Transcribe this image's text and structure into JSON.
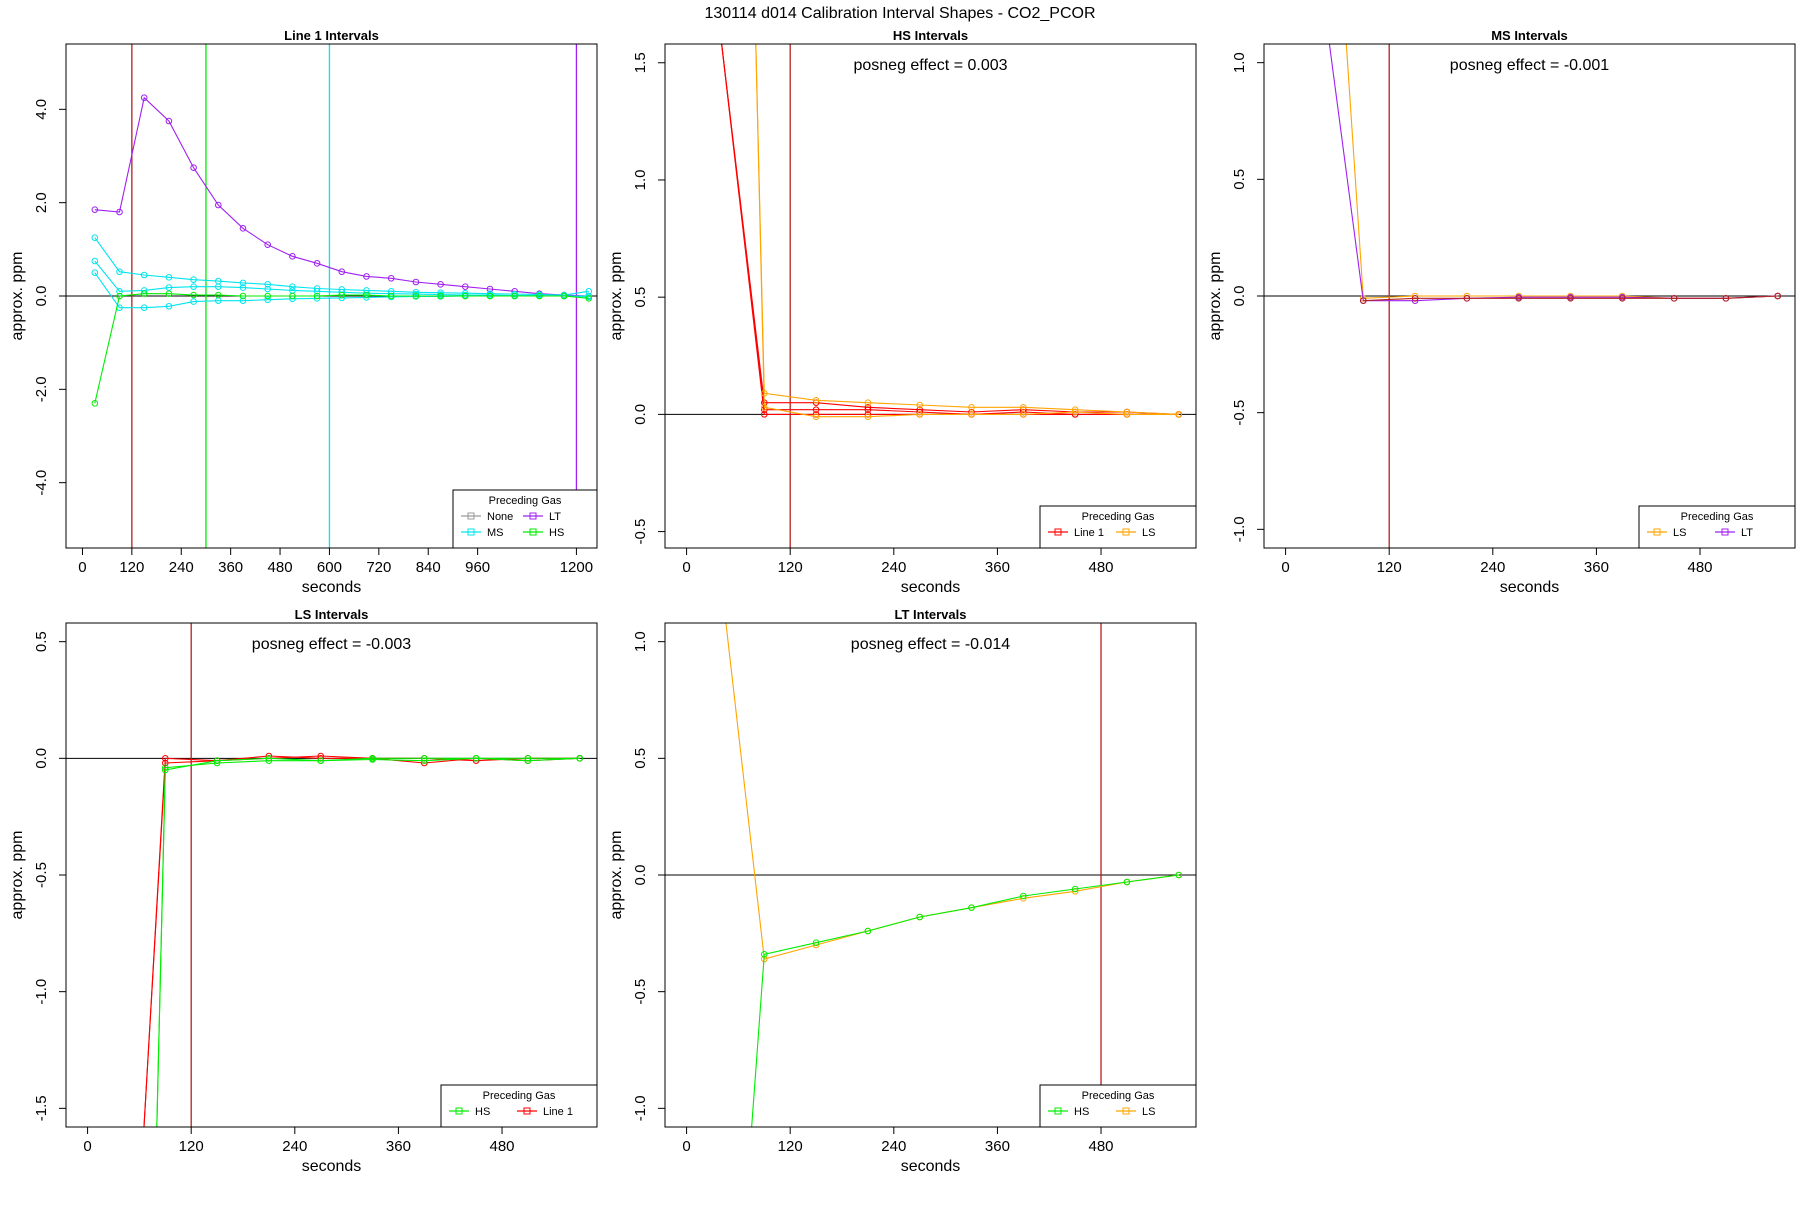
{
  "figure_title": "130114  d014   Calibration Interval Shapes - CO2_PCOR",
  "legend_title": "Preceding Gas",
  "chart_data": [
    {
      "type": "line",
      "title": "Line 1 Intervals",
      "xlabel": "seconds",
      "ylabel": "approx. ppm",
      "xlim": [
        -40,
        1250
      ],
      "ylim": [
        -5.4,
        5.4
      ],
      "xticks": [
        0,
        120,
        240,
        360,
        480,
        600,
        720,
        840,
        960,
        1200
      ],
      "yticks": [
        -4,
        -2,
        0,
        2,
        4
      ],
      "hline": 0,
      "vlines": [
        {
          "x": 120,
          "color": "#b22222"
        },
        {
          "x": 300,
          "color": "#00ee00"
        },
        {
          "x": 600,
          "color": "#00e5ee"
        },
        {
          "x": 1200,
          "color": "#a020f0"
        }
      ],
      "legend": {
        "position": "bottom-right",
        "columns": 2,
        "entries": [
          {
            "label": "None",
            "color": "#9a9a9a"
          },
          {
            "label": "LT",
            "color": "#a020f0"
          },
          {
            "label": "MS",
            "color": "#00e5ee"
          },
          {
            "label": "HS",
            "color": "#00ee00"
          }
        ]
      },
      "series": [
        {
          "color": "#a020f0",
          "x": [
            30,
            90,
            150,
            210,
            270,
            330,
            390,
            450,
            510,
            570,
            630,
            690,
            750,
            810,
            870,
            930,
            990,
            1050,
            1110,
            1170,
            1230
          ],
          "y": [
            1.85,
            1.8,
            4.25,
            3.75,
            2.75,
            1.95,
            1.45,
            1.1,
            0.85,
            0.7,
            0.52,
            0.42,
            0.38,
            0.3,
            0.25,
            0.2,
            0.15,
            0.1,
            0.05,
            0.02,
            0
          ]
        },
        {
          "color": "#00e5ee",
          "x": [
            30,
            90,
            150,
            210,
            270,
            330,
            390,
            450,
            510,
            570,
            630,
            690,
            750,
            810,
            870,
            930,
            990,
            1050,
            1110,
            1170,
            1230
          ],
          "y": [
            1.25,
            0.52,
            0.45,
            0.4,
            0.35,
            0.32,
            0.28,
            0.25,
            0.2,
            0.16,
            0.14,
            0.12,
            0.1,
            0.08,
            0.07,
            0.06,
            0.05,
            0.04,
            0.03,
            0.02,
            0.1
          ]
        },
        {
          "color": "#00e5ee",
          "x": [
            30,
            90,
            150,
            210,
            270,
            330,
            390,
            450,
            510,
            570,
            630,
            690,
            750,
            810,
            870,
            930,
            990,
            1050,
            1110,
            1170,
            1230
          ],
          "y": [
            0.75,
            0.1,
            0.12,
            0.18,
            0.2,
            0.2,
            0.18,
            0.15,
            0.12,
            0.1,
            0.08,
            0.06,
            0.05,
            0.04,
            0.03,
            0.02,
            0.02,
            0.01,
            0.01,
            0,
            0
          ]
        },
        {
          "color": "#00e5ee",
          "x": [
            30,
            90,
            150,
            210,
            270,
            330,
            390,
            450,
            510,
            570,
            630,
            690,
            750,
            810,
            870,
            930,
            990,
            1050,
            1110,
            1170,
            1230
          ],
          "y": [
            0.5,
            -0.25,
            -0.25,
            -0.22,
            -0.12,
            -0.1,
            -0.1,
            -0.08,
            -0.06,
            -0.05,
            -0.04,
            -0.03,
            -0.02,
            -0.01,
            -0.01,
            0,
            0,
            0,
            0,
            0,
            -0.02
          ]
        },
        {
          "color": "#00ee00",
          "x": [
            30,
            90,
            150,
            210,
            270,
            330,
            390,
            450,
            510,
            570,
            630,
            690,
            750,
            810,
            870,
            930,
            990,
            1050,
            1110,
            1170,
            1230
          ],
          "y": [
            -2.3,
            0.0,
            0.05,
            0.05,
            0.02,
            0.02,
            0.0,
            0.0,
            0.0,
            0.0,
            0.02,
            0.02,
            0.0,
            0.0,
            0.0,
            0.0,
            0.0,
            0.0,
            0.0,
            0.0,
            -0.05
          ]
        }
      ]
    },
    {
      "type": "line",
      "title": "HS Intervals",
      "annotation": "posneg effect = 0.003",
      "xlabel": "seconds",
      "ylabel": "approx. ppm",
      "xlim": [
        -25,
        590
      ],
      "ylim": [
        -0.57,
        1.58
      ],
      "xticks": [
        0,
        120,
        240,
        360,
        480
      ],
      "yticks": [
        -0.5,
        0.0,
        0.5,
        1.0,
        1.5
      ],
      "hline": 0,
      "vlines": [
        {
          "x": 120,
          "color": "#b22222"
        }
      ],
      "legend": {
        "position": "bottom-right",
        "columns": 2,
        "entries": [
          {
            "label": "Line 1",
            "color": "#ff0000"
          },
          {
            "label": "LS",
            "color": "#ffa500"
          }
        ]
      },
      "series": [
        {
          "color": "#ff0000",
          "x": [
            40,
            90,
            150,
            210,
            270,
            330,
            390,
            450,
            510,
            570
          ],
          "y": [
            1.6,
            0.05,
            0.05,
            0.03,
            0.02,
            0.01,
            0.02,
            0.01,
            0.01,
            0
          ]
        },
        {
          "color": "#ff0000",
          "x": [
            40,
            90,
            150,
            210,
            270,
            330,
            390,
            450,
            510,
            570
          ],
          "y": [
            1.6,
            0.02,
            0.02,
            0.02,
            0.01,
            0.0,
            0.01,
            0.0,
            0.0,
            0
          ]
        },
        {
          "color": "#ff0000",
          "x": [
            40,
            90,
            150,
            210,
            270,
            330,
            390,
            450,
            510,
            570
          ],
          "y": [
            1.6,
            0.0,
            0.0,
            0.0,
            0.0,
            0.0,
            0.0,
            0.0,
            0.0,
            0
          ]
        },
        {
          "color": "#ffa500",
          "x": [
            80,
            90,
            150,
            210,
            270,
            330,
            390,
            450,
            510,
            570
          ],
          "y": [
            1.6,
            0.09,
            0.06,
            0.05,
            0.04,
            0.03,
            0.03,
            0.02,
            0.01,
            0
          ]
        },
        {
          "color": "#ffa500",
          "x": [
            80,
            90,
            150,
            210,
            270,
            330,
            390,
            450,
            510,
            570
          ],
          "y": [
            1.6,
            0.03,
            -0.01,
            -0.01,
            0.0,
            0.0,
            0.0,
            0.01,
            0.0,
            0
          ]
        }
      ]
    },
    {
      "type": "line",
      "title": "MS Intervals",
      "annotation": "posneg effect = -0.001",
      "xlabel": "seconds",
      "ylabel": "approx. ppm",
      "xlim": [
        -25,
        590
      ],
      "ylim": [
        -1.08,
        1.08
      ],
      "xticks": [
        0,
        120,
        240,
        360,
        480
      ],
      "yticks": [
        -1.0,
        -0.5,
        0.0,
        0.5,
        1.0
      ],
      "hline": 0,
      "vlines": [
        {
          "x": 120,
          "color": "#b22222"
        }
      ],
      "legend": {
        "position": "bottom-right",
        "columns": 2,
        "entries": [
          {
            "label": "LS",
            "color": "#ffa500"
          },
          {
            "label": "LT",
            "color": "#a020f0"
          }
        ]
      },
      "series": [
        {
          "color": "#ffa500",
          "x": [
            70,
            90,
            150,
            210,
            270,
            330,
            390,
            450,
            510,
            570
          ],
          "y": [
            1.1,
            -0.01,
            0.0,
            0.0,
            0.0,
            0.0,
            0.0,
            -0.01,
            -0.01,
            0
          ]
        },
        {
          "color": "#a020f0",
          "x": [
            50,
            90,
            150,
            210,
            270,
            330,
            390,
            450,
            510,
            570
          ],
          "y": [
            1.1,
            -0.02,
            -0.02,
            -0.01,
            -0.005,
            -0.005,
            -0.005,
            -0.01,
            -0.01,
            0
          ]
        },
        {
          "color": "#b22222",
          "x": [
            90,
            150,
            210,
            270,
            330,
            390,
            450,
            510,
            570
          ],
          "y": [
            -0.02,
            -0.01,
            -0.01,
            -0.01,
            -0.01,
            -0.01,
            -0.01,
            -0.01,
            0
          ]
        }
      ]
    },
    {
      "type": "line",
      "title": "LS Intervals",
      "annotation": "posneg effect = -0.003",
      "xlabel": "seconds",
      "ylabel": "approx. ppm",
      "xlim": [
        -25,
        590
      ],
      "ylim": [
        -1.58,
        0.58
      ],
      "xticks": [
        0,
        120,
        240,
        360,
        480
      ],
      "yticks": [
        -1.5,
        -1.0,
        -0.5,
        0.0,
        0.5
      ],
      "hline": 0,
      "vlines": [
        {
          "x": 120,
          "color": "#b22222"
        }
      ],
      "legend": {
        "position": "bottom-right",
        "columns": 2,
        "entries": [
          {
            "label": "HS",
            "color": "#00ee00"
          },
          {
            "label": "Line 1",
            "color": "#ff0000"
          }
        ]
      },
      "series": [
        {
          "color": "#ff0000",
          "x": [
            65,
            90,
            150,
            210,
            270,
            330,
            390,
            450,
            510,
            570
          ],
          "y": [
            -1.6,
            0.0,
            -0.01,
            0.01,
            0.0,
            0.0,
            -0.02,
            0.0,
            -0.01,
            0
          ]
        },
        {
          "color": "#ff0000",
          "x": [
            65,
            90,
            150,
            210,
            270,
            330,
            390,
            450,
            510,
            570
          ],
          "y": [
            -1.6,
            -0.02,
            -0.01,
            0.0,
            0.01,
            0.0,
            0.0,
            -0.01,
            0.0,
            0
          ]
        },
        {
          "color": "#00ee00",
          "x": [
            80,
            90,
            150,
            210,
            270,
            330,
            390,
            450,
            510,
            570
          ],
          "y": [
            -1.6,
            -0.04,
            -0.02,
            -0.01,
            -0.01,
            -0.005,
            -0.01,
            0.0,
            -0.01,
            0
          ]
        },
        {
          "color": "#00ee00",
          "x": [
            80,
            90,
            150,
            210,
            270,
            330,
            390,
            450,
            510,
            570
          ],
          "y": [
            -1.6,
            -0.05,
            -0.01,
            0.0,
            -0.01,
            0.0,
            0.0,
            0.0,
            0.0,
            0
          ]
        }
      ]
    },
    {
      "type": "line",
      "title": "LT Intervals",
      "annotation": "posneg effect = -0.014",
      "xlabel": "seconds",
      "ylabel": "approx. ppm",
      "xlim": [
        -25,
        590
      ],
      "ylim": [
        -1.08,
        1.08
      ],
      "xticks": [
        0,
        120,
        240,
        360,
        480
      ],
      "yticks": [
        -1.0,
        -0.5,
        0.0,
        0.5,
        1.0
      ],
      "hline": 0,
      "vlines": [
        {
          "x": 480,
          "color": "#b22222"
        }
      ],
      "legend": {
        "position": "bottom-right",
        "columns": 2,
        "entries": [
          {
            "label": "HS",
            "color": "#00ee00"
          },
          {
            "label": "LS",
            "color": "#ffa500"
          }
        ]
      },
      "series": [
        {
          "color": "#ffa500",
          "x": [
            45,
            90,
            150,
            210,
            270,
            330,
            390,
            450,
            510,
            570
          ],
          "y": [
            1.1,
            -0.36,
            -0.3,
            -0.24,
            -0.18,
            -0.14,
            -0.1,
            -0.07,
            -0.03,
            0
          ]
        },
        {
          "color": "#00ee00",
          "x": [
            75,
            90,
            150,
            210,
            270,
            330,
            390,
            450,
            510,
            570
          ],
          "y": [
            -1.1,
            -0.34,
            -0.29,
            -0.24,
            -0.18,
            -0.14,
            -0.09,
            -0.06,
            -0.03,
            0
          ]
        }
      ]
    }
  ]
}
